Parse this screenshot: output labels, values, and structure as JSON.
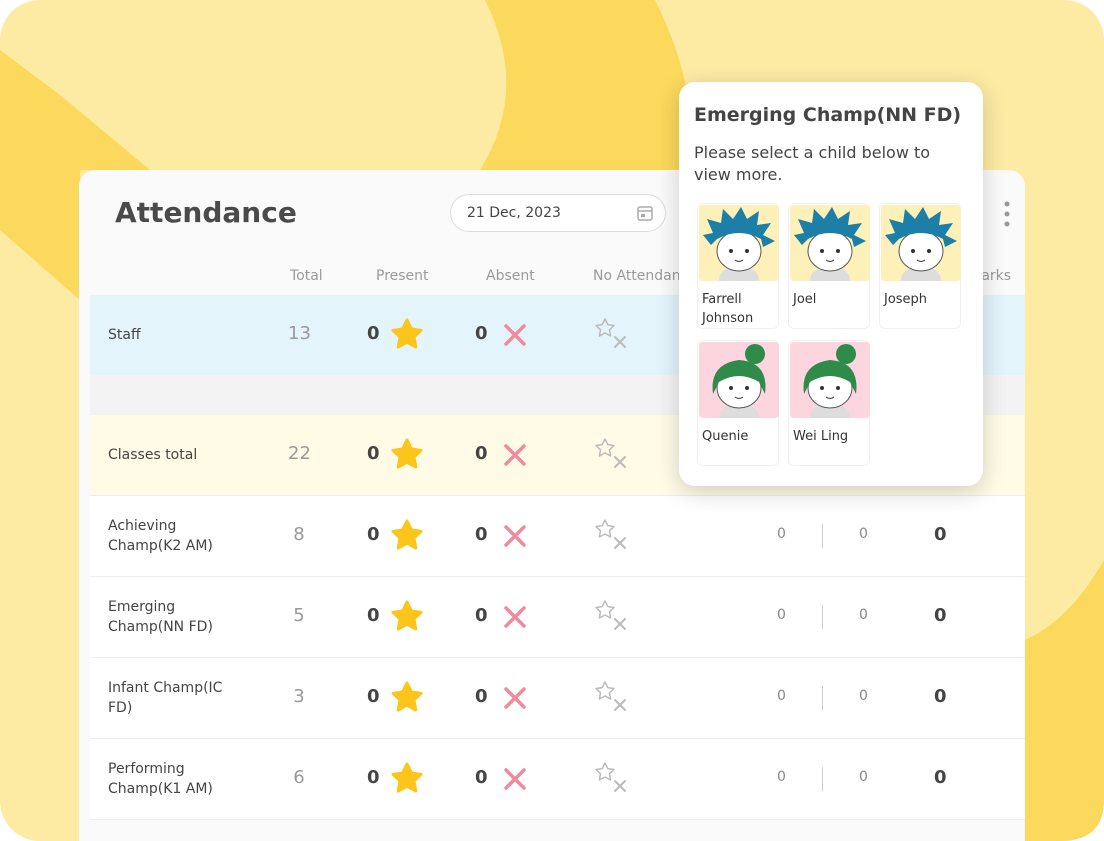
{
  "header": {
    "title": "Attendance",
    "date": "21 Dec, 2023"
  },
  "table": {
    "columns": [
      "Total",
      "Present",
      "Absent",
      "No Attendance",
      "Remarks"
    ],
    "rows": [
      {
        "name": "Staff",
        "total": "13",
        "present": "0",
        "absent": "0"
      },
      {
        "name": "Classes total",
        "total": "22",
        "present": "0",
        "absent": "0"
      },
      {
        "name": "Achieving Champ(K2 AM)",
        "total": "8",
        "present": "0",
        "absent": "0",
        "extra": [
          "0",
          "0",
          "0"
        ]
      },
      {
        "name": "Emerging Champ(NN FD)",
        "total": "5",
        "present": "0",
        "absent": "0",
        "extra": [
          "0",
          "0",
          "0"
        ]
      },
      {
        "name": "Infant Champ(IC FD)",
        "total": "3",
        "present": "0",
        "absent": "0",
        "extra": [
          "0",
          "0",
          "0"
        ]
      },
      {
        "name": "Performing Champ(K1 AM)",
        "total": "6",
        "present": "0",
        "absent": "0",
        "extra": [
          "0",
          "0",
          "0"
        ]
      }
    ]
  },
  "popup": {
    "title": "Emerging Champ(NN FD)",
    "text": "Please select a child below to view more.",
    "children": [
      {
        "name": "Farrell Johnson",
        "kind": "boy"
      },
      {
        "name": "Joel",
        "kind": "boy"
      },
      {
        "name": "Joseph",
        "kind": "boy"
      },
      {
        "name": "Quenie",
        "kind": "girl"
      },
      {
        "name": "Wei Ling",
        "kind": "girl"
      }
    ]
  }
}
